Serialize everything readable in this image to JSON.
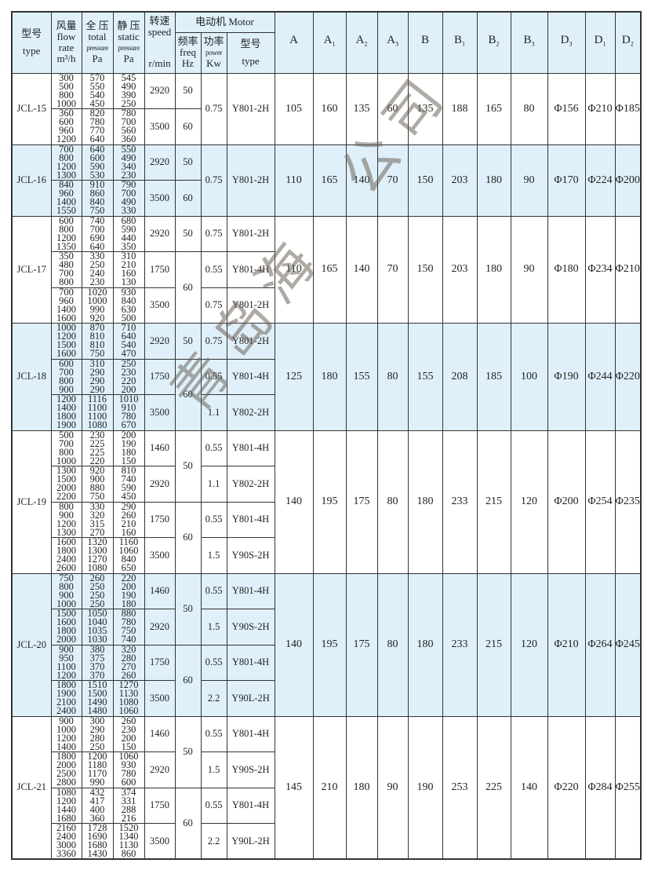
{
  "header": {
    "type": {
      "cn": "型号",
      "en": "type"
    },
    "flow": {
      "cn": "风量",
      "en1": "flow",
      "en2": "rate",
      "unit": "m³/h"
    },
    "total": {
      "cn": "全 压",
      "en": "total",
      "en2": "pressure",
      "unit": "Pa"
    },
    "static": {
      "cn": "静 压",
      "en": "static",
      "en2": "pressure",
      "unit": "Pa"
    },
    "speed": {
      "cn": "转速",
      "en": "speed",
      "unit": "r/min"
    },
    "motor": "电动机 Motor",
    "freq": {
      "cn": "频率",
      "en": "freq",
      "unit": "Hz"
    },
    "power": {
      "cn": "功率",
      "en": "power",
      "unit": "Kw"
    },
    "mtype": {
      "cn": "型号",
      "en": "type"
    },
    "dims": [
      {
        "base": "A",
        "sub": ""
      },
      {
        "base": "A",
        "sub": "1"
      },
      {
        "base": "A",
        "sub": "2"
      },
      {
        "base": "A",
        "sub": "3"
      },
      {
        "base": "B",
        "sub": ""
      },
      {
        "base": "B",
        "sub": "1"
      },
      {
        "base": "B",
        "sub": "2"
      },
      {
        "base": "B",
        "sub": "3"
      },
      {
        "base": "D",
        "sub": "3"
      },
      {
        "base": "D",
        "sub": "1"
      },
      {
        "base": "D",
        "sub": "2"
      }
    ]
  },
  "watermark": "青岛海　公司",
  "colors": {
    "header_bg": "#dff0fa",
    "alt_row_bg": "#dff0fa",
    "border": "#333333"
  },
  "models": [
    {
      "type": "JCL-15",
      "shaded": false,
      "subs": [
        {
          "flow": [
            "300",
            "500",
            "800",
            "1000"
          ],
          "total": [
            "570",
            "550",
            "540",
            "450"
          ],
          "static": [
            "545",
            "490",
            "390",
            "250"
          ],
          "speed": "2920"
        },
        {
          "flow": [
            "360",
            "600",
            "960",
            "1200"
          ],
          "total": [
            "820",
            "780",
            "770",
            "640"
          ],
          "static": [
            "780",
            "700",
            "560",
            "360"
          ],
          "speed": "3500"
        }
      ],
      "freq": [
        {
          "value": "50",
          "span": 1
        },
        {
          "value": "60",
          "span": 1
        }
      ],
      "power": [
        {
          "value": "0.75",
          "type": "Y801-2H",
          "span": 2
        }
      ],
      "dims": [
        "105",
        "160",
        "135",
        "60",
        "135",
        "188",
        "165",
        "80",
        "Φ156",
        "Φ210",
        "Φ185"
      ]
    },
    {
      "type": "JCL-16",
      "shaded": true,
      "subs": [
        {
          "flow": [
            "700",
            "800",
            "1200",
            "1300"
          ],
          "total": [
            "640",
            "600",
            "590",
            "530"
          ],
          "static": [
            "550",
            "490",
            "340",
            "230"
          ],
          "speed": "2920"
        },
        {
          "flow": [
            "840",
            "960",
            "1400",
            "1550"
          ],
          "total": [
            "910",
            "860",
            "840",
            "750"
          ],
          "static": [
            "790",
            "700",
            "490",
            "330"
          ],
          "speed": "3500"
        }
      ],
      "freq": [
        {
          "value": "50",
          "span": 1
        },
        {
          "value": "60",
          "span": 1
        }
      ],
      "power": [
        {
          "value": "0.75",
          "type": "Y801-2H",
          "span": 2
        }
      ],
      "dims": [
        "110",
        "165",
        "140",
        "70",
        "150",
        "203",
        "180",
        "90",
        "Φ170",
        "Φ224",
        "Φ200"
      ]
    },
    {
      "type": "JCL-17",
      "shaded": false,
      "subs": [
        {
          "flow": [
            "600",
            "800",
            "1200",
            "1350"
          ],
          "total": [
            "740",
            "700",
            "690",
            "640"
          ],
          "static": [
            "680",
            "590",
            "440",
            "350"
          ],
          "speed": "2920"
        },
        {
          "flow": [
            "350",
            "480",
            "700",
            "800"
          ],
          "total": [
            "330",
            "250",
            "240",
            "230"
          ],
          "static": [
            "310",
            "210",
            "160",
            "130"
          ],
          "speed": "1750"
        },
        {
          "flow": [
            "700",
            "960",
            "1400",
            "1600"
          ],
          "total": [
            "1020",
            "1000",
            "990",
            "920"
          ],
          "static": [
            "930",
            "840",
            "630",
            "500"
          ],
          "speed": "3500"
        }
      ],
      "freq": [
        {
          "value": "50",
          "span": 1
        },
        {
          "value": "60",
          "span": 2
        }
      ],
      "power": [
        {
          "value": "0.75",
          "type": "Y801-2H",
          "span": 1
        },
        {
          "value": "0.55",
          "type": "Y801-4H",
          "span": 1
        },
        {
          "value": "0.75",
          "type": "Y801-2H",
          "span": 1
        }
      ],
      "dims": [
        "110",
        "165",
        "140",
        "70",
        "150",
        "203",
        "180",
        "90",
        "Φ180",
        "Φ234",
        "Φ210"
      ]
    },
    {
      "type": "JCL-18",
      "shaded": true,
      "subs": [
        {
          "flow": [
            "1000",
            "1200",
            "1500",
            "1600"
          ],
          "total": [
            "870",
            "810",
            "810",
            "750"
          ],
          "static": [
            "710",
            "640",
            "540",
            "470"
          ],
          "speed": "2920"
        },
        {
          "flow": [
            "600",
            "700",
            "800",
            "900"
          ],
          "total": [
            "310",
            "290",
            "290",
            "290"
          ],
          "static": [
            "250",
            "230",
            "220",
            "200"
          ],
          "speed": "1750"
        },
        {
          "flow": [
            "1200",
            "1400",
            "1800",
            "1900"
          ],
          "total": [
            "1116",
            "1100",
            "1100",
            "1080"
          ],
          "static": [
            "1010",
            "910",
            "780",
            "670"
          ],
          "speed": "3500"
        }
      ],
      "freq": [
        {
          "value": "50",
          "span": 1
        },
        {
          "value": "60",
          "span": 2
        }
      ],
      "power": [
        {
          "value": "0.75",
          "type": "Y801-2H",
          "span": 1
        },
        {
          "value": "0.55",
          "type": "Y801-4H",
          "span": 1
        },
        {
          "value": "1.1",
          "type": "Y802-2H",
          "span": 1
        }
      ],
      "dims": [
        "125",
        "180",
        "155",
        "80",
        "155",
        "208",
        "185",
        "100",
        "Φ190",
        "Φ244",
        "Φ220"
      ]
    },
    {
      "type": "JCL-19",
      "shaded": false,
      "subs": [
        {
          "flow": [
            "500",
            "700",
            "800",
            "1000"
          ],
          "total": [
            "230",
            "225",
            "225",
            "220"
          ],
          "static": [
            "200",
            "190",
            "180",
            "150"
          ],
          "speed": "1460"
        },
        {
          "flow": [
            "1300",
            "1500",
            "2000",
            "2200"
          ],
          "total": [
            "920",
            "900",
            "880",
            "750"
          ],
          "static": [
            "810",
            "740",
            "590",
            "450"
          ],
          "speed": "2920"
        },
        {
          "flow": [
            "800",
            "900",
            "1200",
            "1300"
          ],
          "total": [
            "330",
            "320",
            "315",
            "270"
          ],
          "static": [
            "290",
            "260",
            "210",
            "160"
          ],
          "speed": "1750"
        },
        {
          "flow": [
            "1600",
            "1800",
            "2400",
            "2600"
          ],
          "total": [
            "1320",
            "1300",
            "1270",
            "1080"
          ],
          "static": [
            "1160",
            "1060",
            "840",
            "650"
          ],
          "speed": "3500"
        }
      ],
      "freq": [
        {
          "value": "50",
          "span": 2
        },
        {
          "value": "60",
          "span": 2
        }
      ],
      "power": [
        {
          "value": "0.55",
          "type": "Y801-4H",
          "span": 1
        },
        {
          "value": "1.1",
          "type": "Y802-2H",
          "span": 1
        },
        {
          "value": "0.55",
          "type": "Y801-4H",
          "span": 1
        },
        {
          "value": "1.5",
          "type": "Y90S-2H",
          "span": 1
        }
      ],
      "dims": [
        "140",
        "195",
        "175",
        "80",
        "180",
        "233",
        "215",
        "120",
        "Φ200",
        "Φ254",
        "Φ235"
      ]
    },
    {
      "type": "JCL-20",
      "shaded": true,
      "subs": [
        {
          "flow": [
            "750",
            "800",
            "900",
            "1000"
          ],
          "total": [
            "260",
            "250",
            "250",
            "250"
          ],
          "static": [
            "220",
            "200",
            "190",
            "180"
          ],
          "speed": "1460"
        },
        {
          "flow": [
            "1500",
            "1600",
            "1800",
            "2000"
          ],
          "total": [
            "1050",
            "1040",
            "1035",
            "1030"
          ],
          "static": [
            "880",
            "780",
            "750",
            "740"
          ],
          "speed": "2920"
        },
        {
          "flow": [
            "900",
            "950",
            "1100",
            "1200"
          ],
          "total": [
            "380",
            "375",
            "370",
            "370"
          ],
          "static": [
            "320",
            "280",
            "270",
            "260"
          ],
          "speed": "1750"
        },
        {
          "flow": [
            "1800",
            "1900",
            "2100",
            "2400"
          ],
          "total": [
            "1510",
            "1500",
            "1490",
            "1480"
          ],
          "static": [
            "1270",
            "1130",
            "1080",
            "1060"
          ],
          "speed": "3500"
        }
      ],
      "freq": [
        {
          "value": "50",
          "span": 2
        },
        {
          "value": "60",
          "span": 2
        }
      ],
      "power": [
        {
          "value": "0.55",
          "type": "Y801-4H",
          "span": 1
        },
        {
          "value": "1.5",
          "type": "Y90S-2H",
          "span": 1
        },
        {
          "value": "0.55",
          "type": "Y801-4H",
          "span": 1
        },
        {
          "value": "2.2",
          "type": "Y90L-2H",
          "span": 1
        }
      ],
      "dims": [
        "140",
        "195",
        "175",
        "80",
        "180",
        "233",
        "215",
        "120",
        "Φ210",
        "Φ264",
        "Φ245"
      ]
    },
    {
      "type": "JCL-21",
      "shaded": false,
      "subs": [
        {
          "flow": [
            "900",
            "1000",
            "1200",
            "1400"
          ],
          "total": [
            "300",
            "290",
            "280",
            "250"
          ],
          "static": [
            "260",
            "230",
            "200",
            "150"
          ],
          "speed": "1460"
        },
        {
          "flow": [
            "1800",
            "2000",
            "2500",
            "2800"
          ],
          "total": [
            "1200",
            "1180",
            "1170",
            "990"
          ],
          "static": [
            "1060",
            "930",
            "780",
            "600"
          ],
          "speed": "2920"
        },
        {
          "flow": [
            "1080",
            "1200",
            "1440",
            "1680"
          ],
          "total": [
            "432",
            "417",
            "400",
            "360"
          ],
          "static": [
            "374",
            "331",
            "288",
            "216"
          ],
          "speed": "1750"
        },
        {
          "flow": [
            "2160",
            "2400",
            "3000",
            "3360"
          ],
          "total": [
            "1728",
            "1690",
            "1680",
            "1430"
          ],
          "static": [
            "1520",
            "1340",
            "1130",
            "860"
          ],
          "speed": "3500"
        }
      ],
      "freq": [
        {
          "value": "50",
          "span": 2
        },
        {
          "value": "60",
          "span": 2
        }
      ],
      "power": [
        {
          "value": "0.55",
          "type": "Y801-4H",
          "span": 1
        },
        {
          "value": "1.5",
          "type": "Y90S-2H",
          "span": 1
        },
        {
          "value": "0.55",
          "type": "Y801-4H",
          "span": 1
        },
        {
          "value": "2.2",
          "type": "Y90L-2H",
          "span": 1
        }
      ],
      "dims": [
        "145",
        "210",
        "180",
        "90",
        "190",
        "253",
        "225",
        "140",
        "Φ220",
        "Φ284",
        "Φ255"
      ]
    }
  ]
}
